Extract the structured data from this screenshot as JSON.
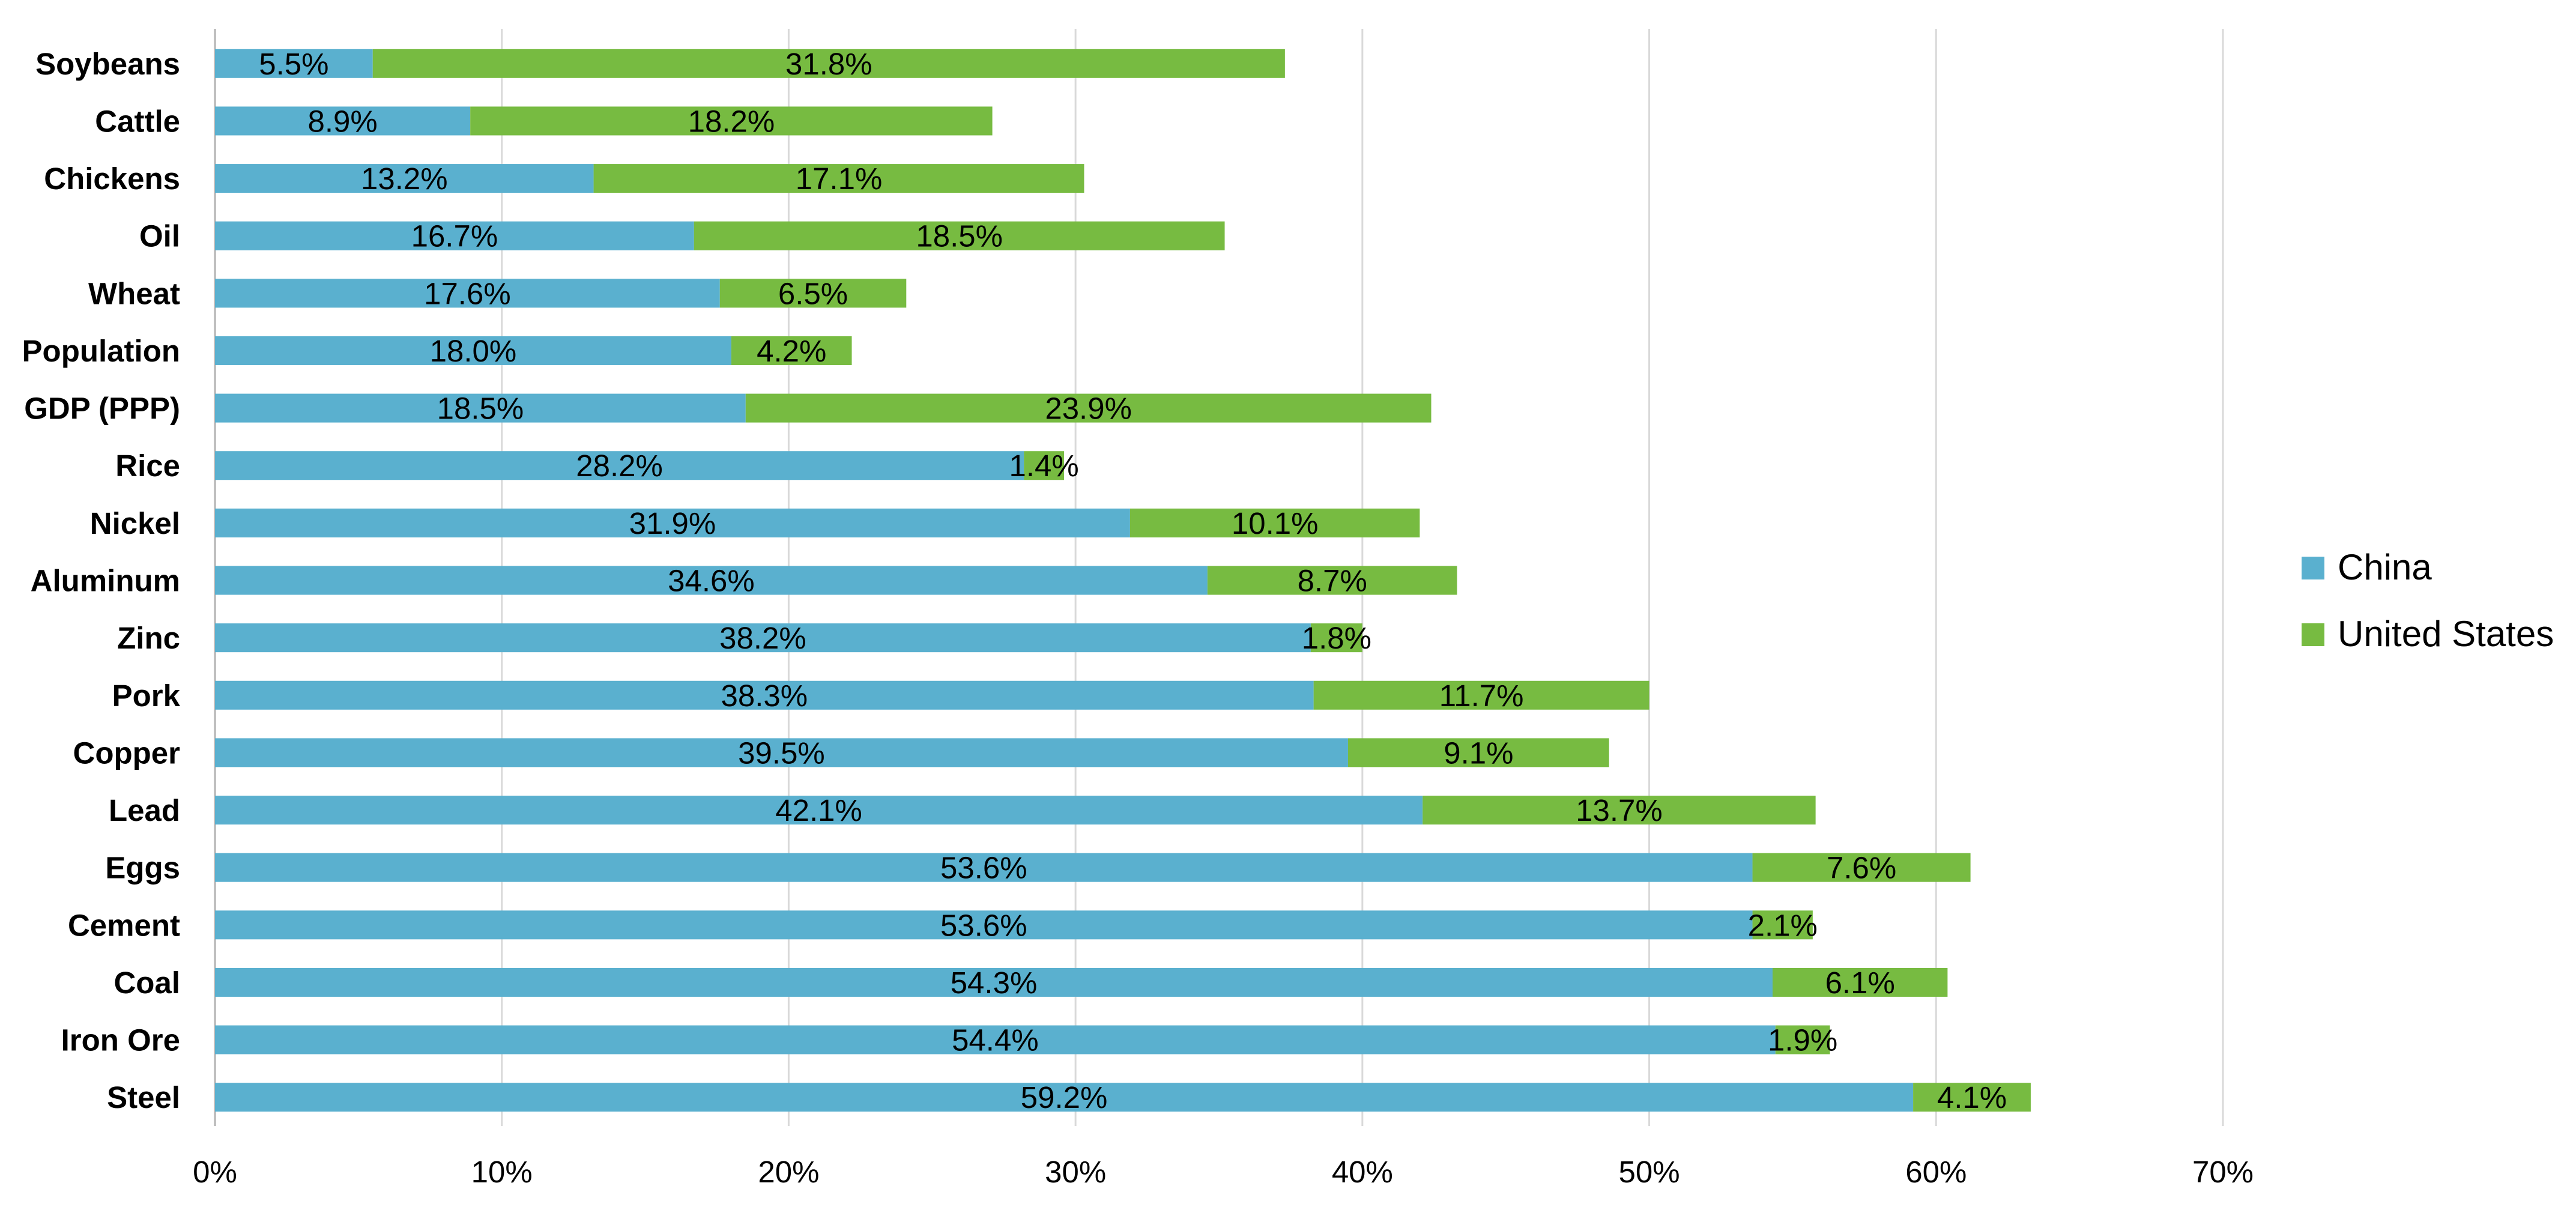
{
  "chart_data": {
    "type": "bar",
    "orientation": "horizontal",
    "stacked": true,
    "categories": [
      "Soybeans",
      "Cattle",
      "Chickens",
      "Oil",
      "Wheat",
      "Population",
      "GDP (PPP)",
      "Rice",
      "Nickel",
      "Aluminum",
      "Zinc",
      "Pork",
      "Copper",
      "Lead",
      "Eggs",
      "Cement",
      "Coal",
      "Iron Ore",
      "Steel"
    ],
    "series": [
      {
        "name": "China",
        "color": "#5ab0cf",
        "values": [
          5.5,
          8.9,
          13.2,
          16.7,
          17.6,
          18.0,
          18.5,
          28.2,
          31.9,
          34.6,
          38.2,
          38.3,
          39.5,
          42.1,
          53.6,
          53.6,
          54.3,
          54.4,
          59.2
        ],
        "labels": [
          "5.5%",
          "8.9%",
          "13.2%",
          "16.7%",
          "17.6%",
          "18.0%",
          "18.5%",
          "28.2%",
          "31.9%",
          "34.6%",
          "38.2%",
          "38.3%",
          "39.5%",
          "42.1%",
          "53.6%",
          "53.6%",
          "54.3%",
          "54.4%",
          "59.2%"
        ]
      },
      {
        "name": "United States",
        "color": "#77bb41",
        "values": [
          31.8,
          18.2,
          17.1,
          18.5,
          6.5,
          4.2,
          23.9,
          1.4,
          10.1,
          8.7,
          1.8,
          11.7,
          9.1,
          13.7,
          7.6,
          2.1,
          6.1,
          1.9,
          4.1
        ],
        "labels": [
          "31.8%",
          "18.2%",
          "17.1%",
          "18.5%",
          "6.5%",
          "4.2%",
          "23.9%",
          "1.4%",
          "10.1%",
          "8.7%",
          "1.8%",
          "11.7%",
          "9.1%",
          "13.7%",
          "7.6%",
          "2.1%",
          "6.1%",
          "1.9%",
          "4.1%"
        ]
      }
    ],
    "x_ticks": [
      "0%",
      "10%",
      "20%",
      "30%",
      "40%",
      "50%",
      "60%",
      "70%"
    ],
    "xlim": [
      0,
      70
    ],
    "title": "",
    "xlabel": "",
    "ylabel": "",
    "grid": true,
    "legend_position": "right"
  }
}
